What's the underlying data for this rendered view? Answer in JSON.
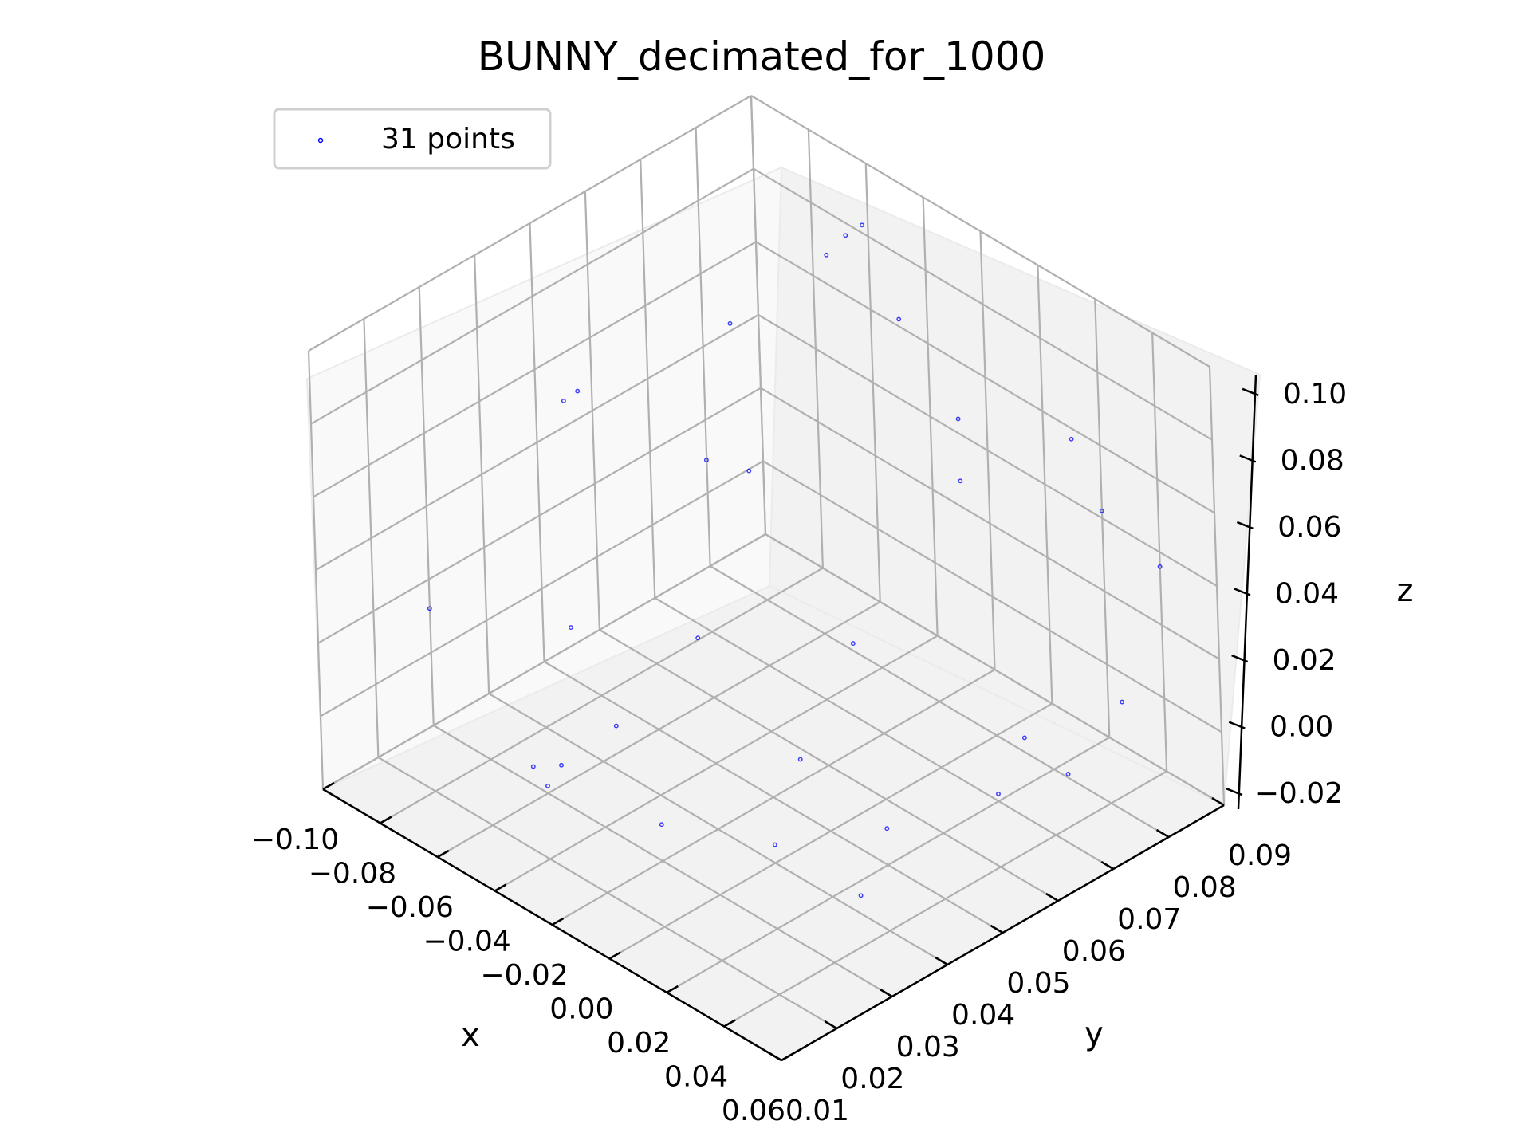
{
  "chart_data": {
    "type": "scatter",
    "projection": "3d",
    "title": "BUNNY_decimated_for_1000",
    "xlabel": "x",
    "ylabel": "y",
    "zlabel": "z",
    "xlim": [
      -0.1,
      0.06
    ],
    "ylim": [
      0.01,
      0.09
    ],
    "zlim": [
      -0.02,
      0.1
    ],
    "grid": true,
    "legend_placement": "upper-left",
    "x_ticks": [
      "−0.10",
      "−0.08",
      "−0.06",
      "−0.04",
      "−0.02",
      "0.00",
      "0.02",
      "0.04",
      "0.06"
    ],
    "y_ticks": [
      "0.01",
      "0.02",
      "0.03",
      "0.04",
      "0.05",
      "0.06",
      "0.07",
      "0.08",
      "0.09"
    ],
    "z_ticks": [
      "−0.02",
      "0.00",
      "0.02",
      "0.04",
      "0.06",
      "0.08",
      "0.10"
    ],
    "series": [
      {
        "name": "31 points",
        "color": "#0000ff",
        "points": [
          [
            -0.045,
            0.075,
            0.095
          ],
          [
            -0.042,
            0.077,
            0.1
          ],
          [
            -0.04,
            0.079,
            0.102
          ],
          [
            -0.03,
            0.08,
            0.08
          ],
          [
            -0.05,
            0.06,
            0.087
          ],
          [
            -0.075,
            0.045,
            0.07
          ],
          [
            -0.08,
            0.045,
            0.065
          ],
          [
            -0.06,
            0.06,
            0.045
          ],
          [
            -0.055,
            0.065,
            0.04
          ],
          [
            -0.03,
            0.07,
            0.0
          ],
          [
            -0.08,
            0.02,
            0.03
          ],
          [
            -0.05,
            0.03,
            0.03
          ],
          [
            -0.025,
            0.04,
            0.03
          ],
          [
            -0.035,
            0.03,
            0.01
          ],
          [
            -0.04,
            0.02,
            0.0
          ],
          [
            -0.055,
            0.03,
            -0.01
          ],
          [
            -0.065,
            0.03,
            -0.015
          ],
          [
            -0.01,
            0.05,
            -0.005
          ],
          [
            -0.02,
            0.03,
            -0.01
          ],
          [
            0.0,
            0.04,
            -0.015
          ],
          [
            0.02,
            0.05,
            -0.01
          ],
          [
            0.03,
            0.04,
            -0.015
          ],
          [
            0.04,
            0.06,
            0.0
          ],
          [
            0.05,
            0.06,
            0.02
          ],
          [
            0.01,
            0.07,
            0.08
          ],
          [
            0.03,
            0.08,
            0.075
          ],
          [
            0.04,
            0.08,
            0.06
          ],
          [
            0.05,
            0.085,
            0.045
          ],
          [
            0.045,
            0.08,
            0.01
          ],
          [
            0.035,
            0.075,
            -0.01
          ],
          [
            -0.01,
            0.08,
            0.045
          ]
        ]
      }
    ]
  }
}
